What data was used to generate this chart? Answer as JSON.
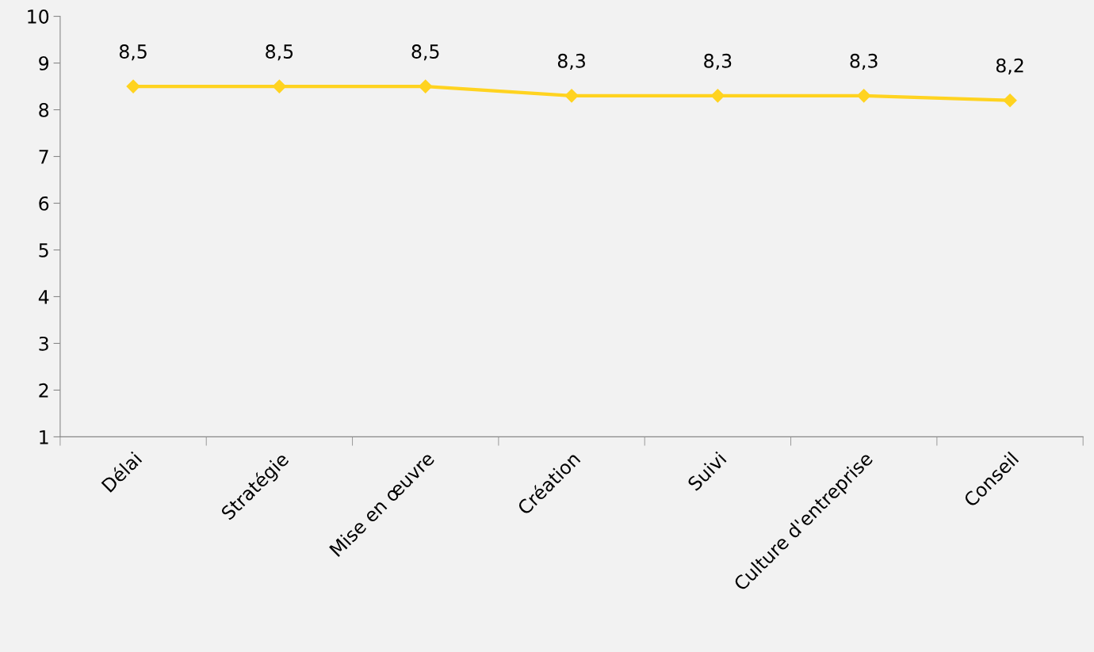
{
  "chart_data": {
    "type": "line",
    "categories": [
      "Délai",
      "Stratégie",
      "Mise en œuvre",
      "Création",
      "Suivi",
      "Culture d'entreprise",
      "Conseil"
    ],
    "series": [
      {
        "color": "#ffd320",
        "values": [
          8.5,
          8.5,
          8.5,
          8.3,
          8.3,
          8.3,
          8.2
        ],
        "value_labels": [
          "8,5",
          "8,5",
          "8,5",
          "8,3",
          "8,3",
          "8,3",
          "8,2"
        ]
      }
    ],
    "ylim": [
      1,
      10
    ],
    "yticks": [
      1,
      2,
      3,
      4,
      5,
      6,
      7,
      8,
      9,
      10
    ],
    "marker": "diamond",
    "line_style": "solid"
  }
}
